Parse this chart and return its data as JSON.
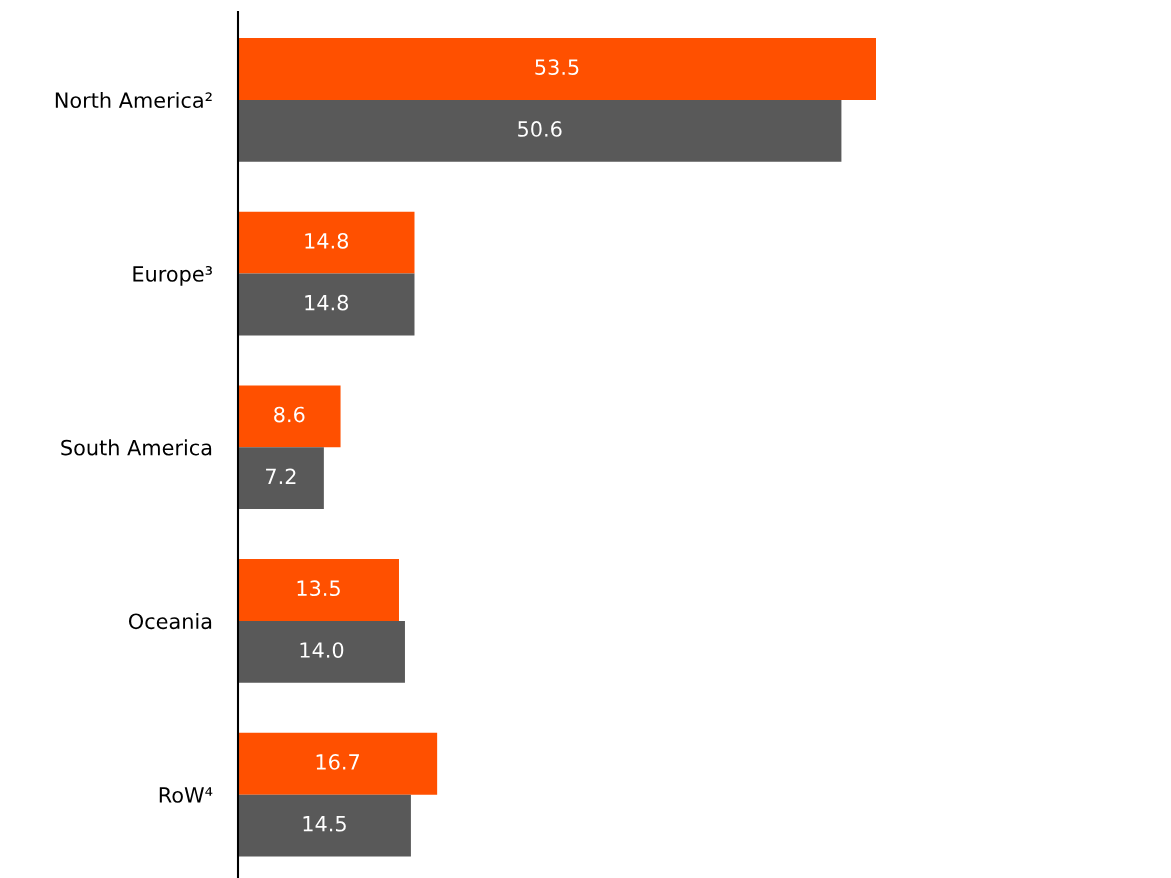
{
  "chart_data": {
    "type": "bar",
    "orientation": "horizontal",
    "categories": [
      "North America²",
      "Europe³",
      "South America",
      "Oceania",
      "RoW⁴"
    ],
    "series": [
      {
        "color": "#ff5000",
        "values": [
          53.5,
          14.8,
          8.6,
          13.5,
          16.7
        ],
        "value_labels": [
          "53.5",
          "14.8",
          "8.6",
          "13.5",
          "16.7"
        ]
      },
      {
        "color": "#595959",
        "values": [
          50.6,
          14.8,
          7.2,
          14.0,
          14.5
        ],
        "value_labels": [
          "50.6",
          "14.8",
          "7.2",
          "14.0",
          "14.5"
        ]
      }
    ],
    "grid": false,
    "legend": false
  }
}
